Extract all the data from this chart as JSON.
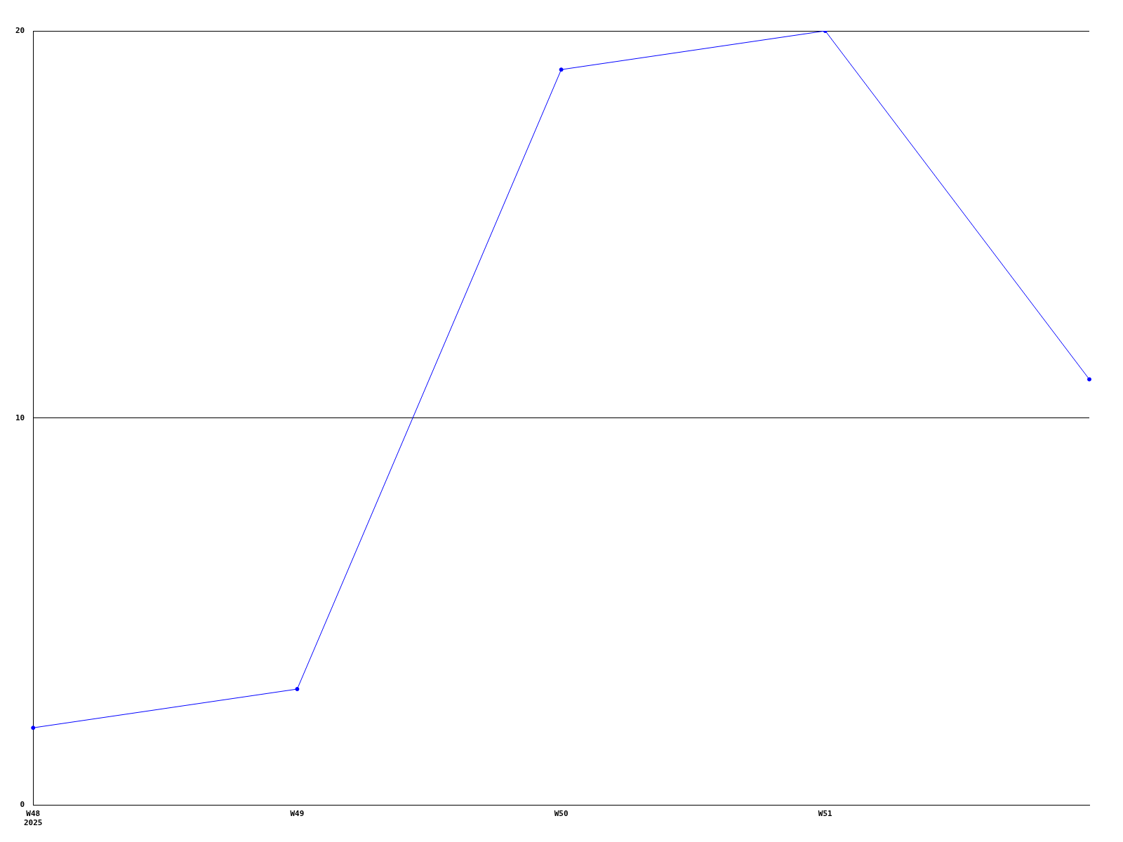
{
  "chart_data": {
    "type": "line",
    "categories": [
      "W48\n2025",
      "W49",
      "W50",
      "W51",
      null
    ],
    "series": [
      {
        "color": "#0000ff",
        "values": [
          2,
          3,
          19,
          20,
          11
        ]
      }
    ],
    "ylim": [
      0,
      20
    ],
    "yticks": [
      0,
      10,
      20
    ],
    "grid": "y",
    "legend": false,
    "marker": "circle"
  }
}
